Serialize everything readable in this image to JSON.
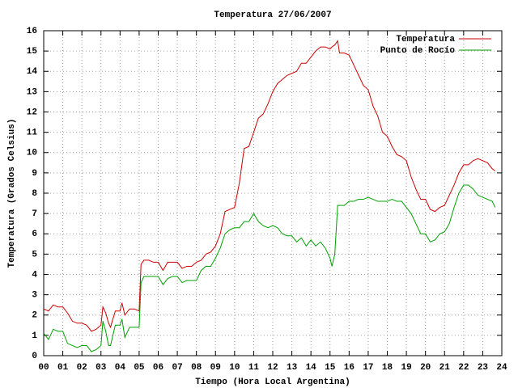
{
  "chart_data": {
    "type": "line",
    "title": "Temperatura 27/06/2007",
    "x_label": "Tiempo (Hora Local Argentina)",
    "y_label": "Temperatura (Grados Celsius)",
    "x": [
      0,
      0.25,
      0.5,
      0.75,
      1,
      1.25,
      1.5,
      1.75,
      2,
      2.25,
      2.5,
      2.75,
      3,
      3.1,
      3.25,
      3.4,
      3.5,
      3.75,
      4,
      4.1,
      4.25,
      4.5,
      4.75,
      5,
      5.1,
      5.25,
      5.5,
      5.75,
      6,
      6.25,
      6.5,
      6.75,
      7,
      7.25,
      7.5,
      7.75,
      8,
      8.25,
      8.5,
      8.75,
      9,
      9.25,
      9.5,
      9.75,
      10,
      10.25,
      10.5,
      10.75,
      11,
      11.25,
      11.5,
      11.75,
      12,
      12.25,
      12.5,
      12.75,
      13,
      13.25,
      13.5,
      13.75,
      14,
      14.25,
      14.5,
      14.75,
      15,
      15.1,
      15.25,
      15.4,
      15.5,
      15.75,
      16,
      16.25,
      16.5,
      16.75,
      17,
      17.25,
      17.5,
      17.75,
      18,
      18.25,
      18.5,
      18.75,
      19,
      19.25,
      19.5,
      19.75,
      20,
      20.25,
      20.5,
      20.75,
      21,
      21.25,
      21.5,
      21.75,
      22,
      22.25,
      22.5,
      22.75,
      23,
      23.25,
      23.5,
      23.65
    ],
    "series": [
      {
        "name": "Temperatura",
        "color": "#cc0000",
        "values": [
          2.3,
          2.2,
          2.5,
          2.4,
          2.4,
          2.1,
          1.7,
          1.6,
          1.6,
          1.5,
          1.2,
          1.3,
          1.5,
          2.4,
          2.1,
          1.6,
          1.4,
          2.2,
          2.2,
          2.6,
          2.0,
          2.3,
          2.3,
          2.2,
          4.5,
          4.7,
          4.7,
          4.6,
          4.6,
          4.2,
          4.6,
          4.6,
          4.6,
          4.3,
          4.4,
          4.4,
          4.6,
          4.7,
          5.0,
          5.1,
          5.4,
          6.0,
          7.1,
          7.2,
          7.3,
          8.5,
          10.2,
          10.3,
          11.0,
          11.7,
          11.9,
          12.4,
          13.0,
          13.4,
          13.6,
          13.8,
          13.9,
          14.0,
          14.4,
          14.4,
          14.7,
          15.0,
          15.2,
          15.2,
          15.1,
          15.2,
          15.3,
          15.5,
          14.9,
          14.9,
          14.8,
          14.3,
          13.8,
          13.3,
          13.1,
          12.3,
          11.8,
          11.0,
          10.8,
          10.3,
          9.9,
          9.8,
          9.6,
          8.8,
          8.2,
          7.7,
          7.7,
          7.2,
          7.1,
          7.3,
          7.4,
          7.9,
          8.4,
          9.0,
          9.4,
          9.4,
          9.6,
          9.7,
          9.6,
          9.5,
          9.2,
          9.1
        ]
      },
      {
        "name": "Punto de Rocío",
        "color": "#00a000",
        "values": [
          1.1,
          0.8,
          1.3,
          1.2,
          1.2,
          0.6,
          0.5,
          0.4,
          0.5,
          0.5,
          0.2,
          0.3,
          0.5,
          1.7,
          1.2,
          0.5,
          0.5,
          1.5,
          1.5,
          1.8,
          0.9,
          1.4,
          1.4,
          1.4,
          3.6,
          3.9,
          3.9,
          3.9,
          3.9,
          3.5,
          3.8,
          3.9,
          3.9,
          3.6,
          3.7,
          3.7,
          3.7,
          4.2,
          4.4,
          4.4,
          4.8,
          5.3,
          6.0,
          6.2,
          6.3,
          6.3,
          6.6,
          6.6,
          7.0,
          6.6,
          6.4,
          6.3,
          6.4,
          6.3,
          6.0,
          5.9,
          5.9,
          5.6,
          5.8,
          5.4,
          5.7,
          5.4,
          5.6,
          5.3,
          4.8,
          4.4,
          5.0,
          7.4,
          7.4,
          7.4,
          7.6,
          7.6,
          7.7,
          7.7,
          7.8,
          7.7,
          7.6,
          7.6,
          7.6,
          7.7,
          7.6,
          7.6,
          7.3,
          7.0,
          6.5,
          6.0,
          6.0,
          5.6,
          5.7,
          6.0,
          6.1,
          6.5,
          7.3,
          8.0,
          8.4,
          8.4,
          8.2,
          7.9,
          7.8,
          7.7,
          7.6,
          7.3
        ]
      }
    ],
    "xlim": [
      0,
      24
    ],
    "xticks": [
      {
        "value": 0,
        "label": "00"
      },
      {
        "value": 1,
        "label": "01"
      },
      {
        "value": 2,
        "label": "02"
      },
      {
        "value": 3,
        "label": "03"
      },
      {
        "value": 4,
        "label": "04"
      },
      {
        "value": 5,
        "label": "05"
      },
      {
        "value": 6,
        "label": "06"
      },
      {
        "value": 7,
        "label": "07"
      },
      {
        "value": 8,
        "label": "08"
      },
      {
        "value": 9,
        "label": "09"
      },
      10,
      11,
      12,
      13,
      14,
      15,
      16,
      17,
      18,
      19,
      20,
      21,
      22,
      23,
      24
    ],
    "ylim": [
      0,
      16
    ],
    "yticks": [
      0,
      1,
      2,
      3,
      4,
      5,
      6,
      7,
      8,
      9,
      10,
      11,
      12,
      13,
      14,
      15,
      16
    ],
    "grid": true,
    "legend": "top-right"
  }
}
